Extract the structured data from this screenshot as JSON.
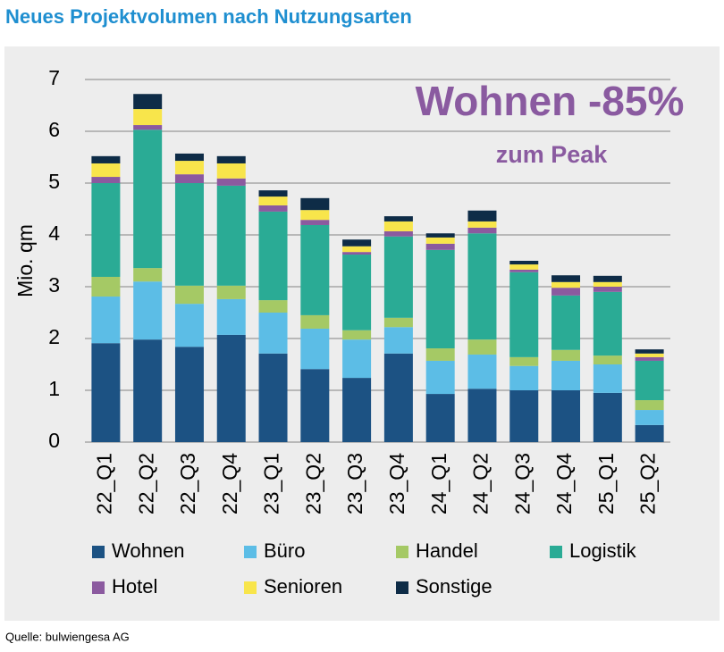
{
  "chart_data": {
    "type": "stacked_bar",
    "title": "Neues Projektvolumen nach Nutzungsarten",
    "annotation": "Wohnen -85%",
    "annotation_sub": "zum Peak",
    "y_label": "Mio. qm",
    "categories": [
      "22_Q1",
      "22_Q2",
      "22_Q3",
      "22_Q4",
      "23_Q1",
      "23_Q2",
      "23_Q3",
      "23_Q4",
      "24_Q1",
      "24_Q2",
      "24_Q3",
      "24_Q4",
      "25_Q1",
      "25_Q2"
    ],
    "series": [
      {
        "name": "Wohnen",
        "color": "#1c5283",
        "values": [
          1.91,
          1.98,
          1.84,
          2.07,
          1.71,
          1.41,
          1.24,
          1.71,
          0.93,
          1.03,
          1.0,
          1.0,
          0.95,
          0.33
        ]
      },
      {
        "name": "Büro",
        "color": "#5cbde6",
        "values": [
          0.9,
          1.12,
          0.83,
          0.69,
          0.79,
          0.78,
          0.74,
          0.51,
          0.64,
          0.66,
          0.47,
          0.57,
          0.55,
          0.29
        ]
      },
      {
        "name": "Handel",
        "color": "#a5c965",
        "values": [
          0.38,
          0.26,
          0.35,
          0.26,
          0.24,
          0.26,
          0.18,
          0.18,
          0.24,
          0.29,
          0.17,
          0.21,
          0.17,
          0.19
        ]
      },
      {
        "name": "Logistik",
        "color": "#2aab95",
        "values": [
          1.81,
          2.67,
          1.98,
          1.93,
          1.71,
          1.74,
          1.46,
          1.57,
          1.9,
          2.05,
          1.64,
          1.05,
          1.23,
          0.76
        ]
      },
      {
        "name": "Hotel",
        "color": "#8b5a9f",
        "values": [
          0.12,
          0.09,
          0.17,
          0.14,
          0.12,
          0.1,
          0.05,
          0.1,
          0.12,
          0.11,
          0.05,
          0.15,
          0.1,
          0.07
        ]
      },
      {
        "name": "Senioren",
        "color": "#f8e54b",
        "values": [
          0.26,
          0.31,
          0.26,
          0.29,
          0.17,
          0.19,
          0.11,
          0.19,
          0.12,
          0.12,
          0.1,
          0.11,
          0.09,
          0.07
        ]
      },
      {
        "name": "Sonstige",
        "color": "#0e2c47",
        "values": [
          0.14,
          0.29,
          0.14,
          0.14,
          0.12,
          0.23,
          0.13,
          0.1,
          0.08,
          0.21,
          0.07,
          0.13,
          0.12,
          0.08
        ]
      }
    ],
    "ylim": [
      0,
      7
    ],
    "yticks": [
      0,
      1,
      2,
      3,
      4,
      5,
      6,
      7
    ],
    "grid": true
  },
  "source": "Quelle: bulwiengesa AG"
}
